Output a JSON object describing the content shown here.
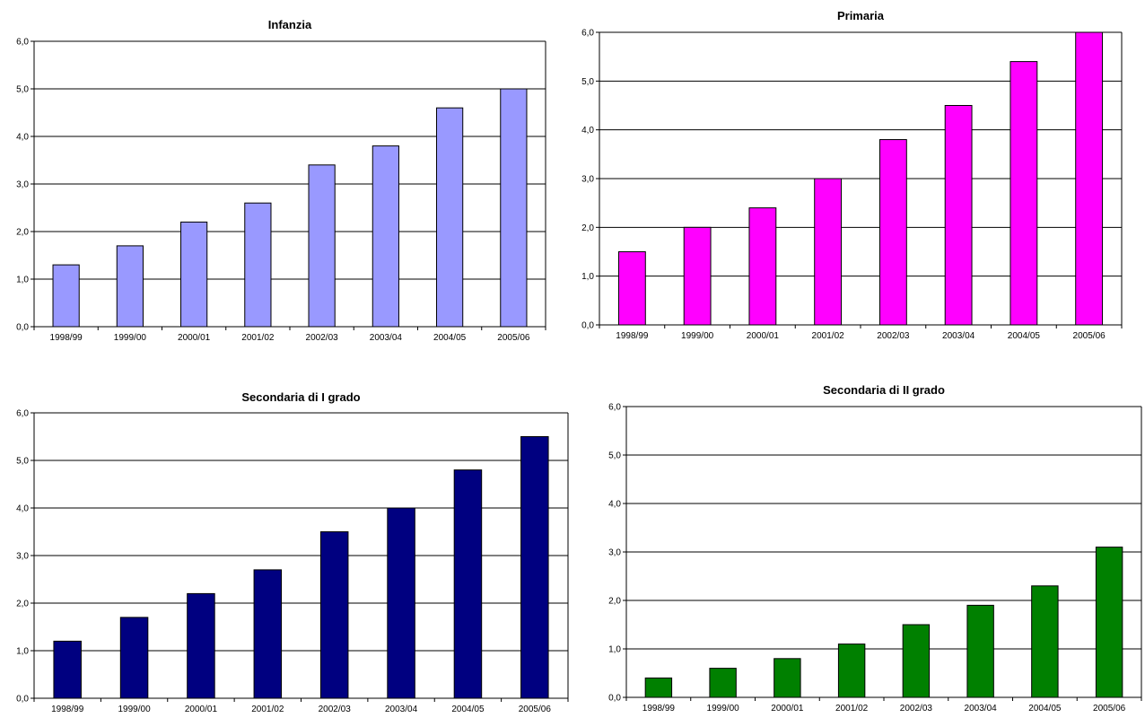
{
  "chart_data": [
    {
      "type": "bar",
      "title": "Infanzia",
      "categories": [
        "1998/99",
        "1999/00",
        "2000/01",
        "2001/02",
        "2002/03",
        "2003/04",
        "2004/05",
        "2005/06"
      ],
      "values": [
        1.3,
        1.7,
        2.2,
        2.6,
        3.4,
        3.8,
        4.6,
        5.0
      ],
      "ylim": [
        0,
        6
      ],
      "yticks": [
        "0,0",
        "1,0",
        "2,0",
        "3,0",
        "4,0",
        "5,0",
        "6,0"
      ],
      "xlabel": "",
      "ylabel": "",
      "grid": true,
      "color": "#9999FF"
    },
    {
      "type": "bar",
      "title": "Primaria",
      "categories": [
        "1998/99",
        "1999/00",
        "2000/01",
        "2001/02",
        "2002/03",
        "2003/04",
        "2004/05",
        "2005/06"
      ],
      "values": [
        1.5,
        2.0,
        2.4,
        3.0,
        3.8,
        4.5,
        5.4,
        6.0
      ],
      "ylim": [
        0,
        6
      ],
      "yticks": [
        "0,0",
        "1,0",
        "2,0",
        "3,0",
        "4,0",
        "5,0",
        "6,0"
      ],
      "xlabel": "",
      "ylabel": "",
      "grid": true,
      "color": "#FF00FF"
    },
    {
      "type": "bar",
      "title": "Secondaria di I grado",
      "categories": [
        "1998/99",
        "1999/00",
        "2000/01",
        "2001/02",
        "2002/03",
        "2003/04",
        "2004/05",
        "2005/06"
      ],
      "values": [
        1.2,
        1.7,
        2.2,
        2.7,
        3.5,
        4.0,
        4.8,
        5.5
      ],
      "ylim": [
        0,
        6
      ],
      "yticks": [
        "0,0",
        "1,0",
        "2,0",
        "3,0",
        "4,0",
        "5,0",
        "6,0"
      ],
      "xlabel": "",
      "ylabel": "",
      "grid": true,
      "color": "#000080"
    },
    {
      "type": "bar",
      "title": "Secondaria di II grado",
      "categories": [
        "1998/99",
        "1999/00",
        "2000/01",
        "2001/02",
        "2002/03",
        "2003/04",
        "2004/05",
        "2005/06"
      ],
      "values": [
        0.4,
        0.6,
        0.8,
        1.1,
        1.5,
        1.9,
        2.3,
        3.1
      ],
      "ylim": [
        0,
        6
      ],
      "yticks": [
        "0,0",
        "1,0",
        "2,0",
        "3,0",
        "4,0",
        "5,0",
        "6,0"
      ],
      "xlabel": "",
      "ylabel": "",
      "grid": true,
      "color": "#008000"
    }
  ]
}
